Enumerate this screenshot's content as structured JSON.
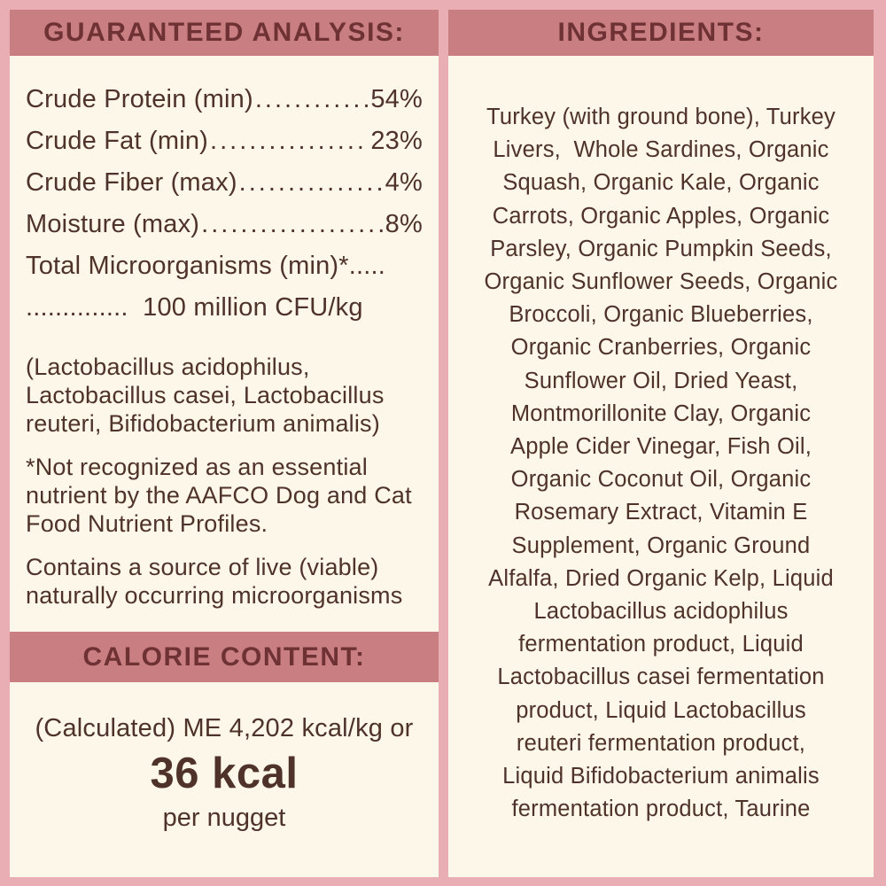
{
  "colors": {
    "background_pink": "#e8aeb3",
    "band_rose": "#c97e82",
    "panel_cream": "#fcf7e8",
    "heading_maroon": "#6e3134",
    "text_brown": "#4f322a"
  },
  "guaranteed_analysis": {
    "header": "GUARANTEED ANALYSIS:",
    "rows": [
      {
        "label": "Crude Protein (min)",
        "leader": "..................................................",
        "value": "54%"
      },
      {
        "label": "Crude Fat (min)",
        "leader": "..................................................",
        "value": "23%"
      },
      {
        "label": "Crude Fiber (max)",
        "leader": "..................................................",
        "value": "4%"
      },
      {
        "label": "Moisture (max)",
        "leader": "..................................................",
        "value": "8%"
      }
    ],
    "microorganisms_line1": "Total Microorganisms (min)*.....",
    "microorganisms_line2": "..............  100 million CFU/kg",
    "species": "(Lactobacillus acidophilus, Lactobacillus casei, Lactobacillus reuteri, Bifidobacterium animalis)",
    "footnote": "*Not recognized as an essential nutrient by the AAFCO Dog and Cat Food Nutrient Profiles.",
    "live_microorganisms_note": "Contains a source of live (viable) naturally occurring microorganisms"
  },
  "calorie_content": {
    "header": "CALORIE CONTENT:",
    "line1": "(Calculated) ME 4,202 kcal/kg or",
    "value": "36 kcal",
    "unit": "per nugget"
  },
  "ingredients": {
    "header": "INGREDIENTS:",
    "lines": [
      "Turkey (with ground bone), Turkey",
      "Livers,  Whole Sardines, Organic",
      "Squash, Organic Kale, Organic",
      "Carrots, Organic Apples, Organic",
      "Parsley, Organic Pumpkin Seeds,",
      "Organic Sunflower Seeds, Organic",
      "Broccoli, Organic Blueberries,",
      "Organic Cranberries, Organic",
      "Sunflower Oil, Dried Yeast,",
      "Montmorillonite Clay, Organic",
      "Apple Cider Vinegar, Fish Oil,",
      "Organic Coconut Oil, Organic",
      "Rosemary Extract, Vitamin E",
      "Supplement, Organic Ground",
      "Alfalfa, Dried Organic Kelp, Liquid",
      "Lactobacillus acidophilus",
      "fermentation product, Liquid",
      "Lactobacillus casei fermentation",
      "product, Liquid Lactobacillus",
      "reuteri fermentation product,",
      "Liquid Bifidobacterium animalis",
      "fermentation product, Taurine"
    ]
  }
}
